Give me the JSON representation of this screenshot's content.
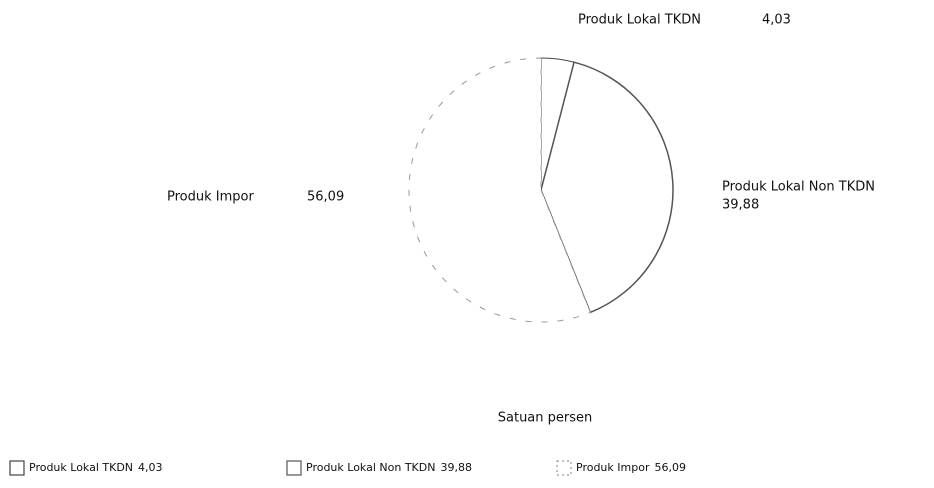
{
  "chart_data": {
    "type": "pie",
    "categories": [
      "Produk Lokal TKDN",
      "Produk Lokal Non TKDN",
      "Produk Impor"
    ],
    "values": [
      4.03,
      39.88,
      56.09
    ],
    "value_labels": [
      "4,03",
      "39,88",
      "56,09"
    ],
    "colors": [
      "#444444",
      "#555555",
      "#999999"
    ],
    "subtitle": "Satuan persen",
    "legend": "bottom"
  }
}
